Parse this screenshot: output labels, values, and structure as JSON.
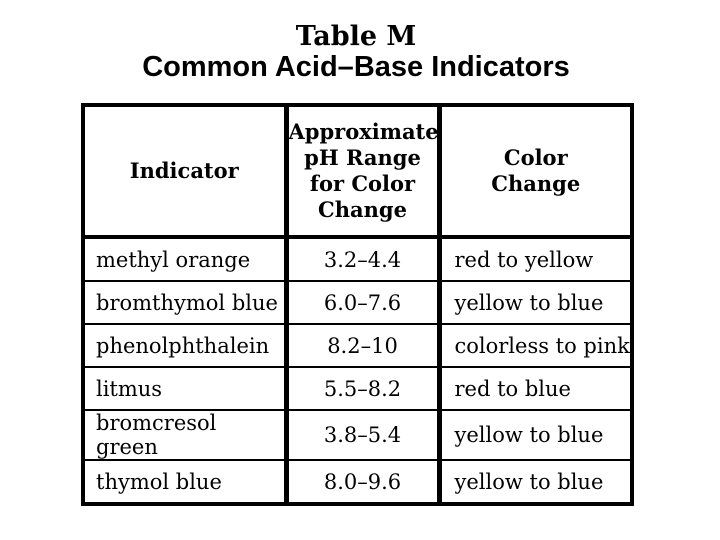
{
  "page": {
    "background_color": "#ffffff",
    "text_color": "#000000",
    "border_color": "#000000"
  },
  "title": "Table M",
  "subtitle": "Common Acid–Base Indicators",
  "table": {
    "headers": [
      "Indicator",
      "Approximate\npH Range\nfor Color\nChange",
      "Color\nChange"
    ],
    "rows": [
      {
        "indicator": "methyl orange",
        "ph_range": "3.2–4.4",
        "color_change": "red to yellow"
      },
      {
        "indicator": "bromthymol blue",
        "ph_range": "6.0–7.6",
        "color_change": "yellow to blue"
      },
      {
        "indicator": "phenolphthalein",
        "ph_range": "8.2–10",
        "color_change": "colorless to pink"
      },
      {
        "indicator": "litmus",
        "ph_range": "5.5–8.2",
        "color_change": "red to blue"
      },
      {
        "indicator": "bromcresol green",
        "ph_range": "3.8–5.4",
        "color_change": "yellow to blue"
      },
      {
        "indicator": "thymol blue",
        "ph_range": "8.0–9.6",
        "color_change": "yellow to blue"
      }
    ]
  },
  "chart_data": {
    "type": "table",
    "title": "Table M — Common Acid–Base Indicators",
    "columns": [
      "Indicator",
      "Approximate pH Range for Color Change",
      "Color Change"
    ],
    "rows": [
      [
        "methyl orange",
        "3.2–4.4",
        "red to yellow"
      ],
      [
        "bromthymol blue",
        "6.0–7.6",
        "yellow to blue"
      ],
      [
        "phenolphthalein",
        "8.2–10",
        "colorless to pink"
      ],
      [
        "litmus",
        "5.5–8.2",
        "red to blue"
      ],
      [
        "bromcresol green",
        "3.8–5.4",
        "yellow to blue"
      ],
      [
        "thymol blue",
        "8.0–9.6",
        "yellow to blue"
      ]
    ]
  }
}
